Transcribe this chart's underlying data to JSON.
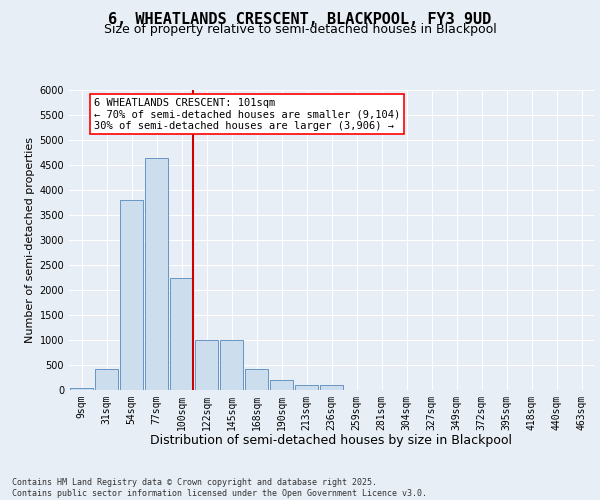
{
  "title": "6, WHEATLANDS CRESCENT, BLACKPOOL, FY3 9UD",
  "subtitle": "Size of property relative to semi-detached houses in Blackpool",
  "xlabel": "Distribution of semi-detached houses by size in Blackpool",
  "ylabel": "Number of semi-detached properties",
  "categories": [
    "9sqm",
    "31sqm",
    "54sqm",
    "77sqm",
    "100sqm",
    "122sqm",
    "145sqm",
    "168sqm",
    "190sqm",
    "213sqm",
    "236sqm",
    "259sqm",
    "281sqm",
    "304sqm",
    "327sqm",
    "349sqm",
    "372sqm",
    "395sqm",
    "418sqm",
    "440sqm",
    "463sqm"
  ],
  "values": [
    50,
    430,
    3800,
    4650,
    2250,
    1000,
    1000,
    420,
    200,
    100,
    100,
    0,
    0,
    0,
    0,
    0,
    0,
    0,
    0,
    0,
    0
  ],
  "bar_color": "#ccdded",
  "bar_edge_color": "#5588bb",
  "vline_index": 4,
  "vline_color": "#cc0000",
  "annotation_line1": "6 WHEATLANDS CRESCENT: 101sqm",
  "annotation_line2": "← 70% of semi-detached houses are smaller (9,104)",
  "annotation_line3": "30% of semi-detached houses are larger (3,906) →",
  "ylim_max": 6000,
  "yticks": [
    0,
    500,
    1000,
    1500,
    2000,
    2500,
    3000,
    3500,
    4000,
    4500,
    5000,
    5500,
    6000
  ],
  "bg_color": "#e8eef6",
  "grid_color": "#ffffff",
  "title_fontsize": 11,
  "subtitle_fontsize": 9,
  "xlabel_fontsize": 9,
  "ylabel_fontsize": 8,
  "tick_fontsize": 7,
  "annotation_fontsize": 7.5,
  "footer_fontsize": 6,
  "footer_line1": "Contains HM Land Registry data © Crown copyright and database right 2025.",
  "footer_line2": "Contains public sector information licensed under the Open Government Licence v3.0."
}
